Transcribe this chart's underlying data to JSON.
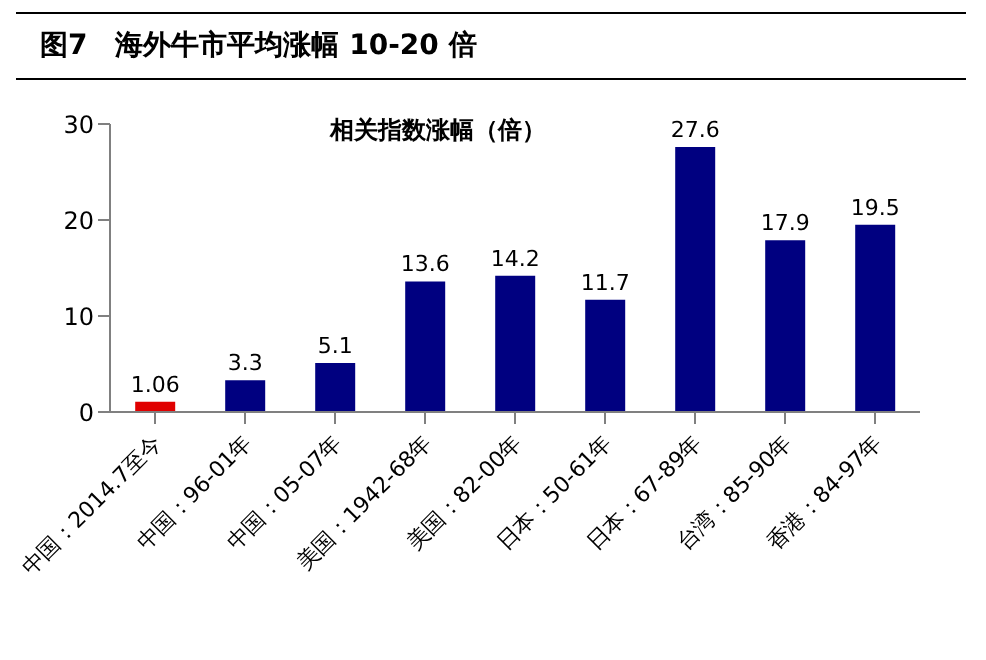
{
  "chart_data": {
    "type": "bar",
    "title": "图7　海外牛市平均涨幅 10-20 倍",
    "subtitle": "相关指数涨幅（倍）",
    "categories": [
      "中国：2014.7至今",
      "中国：96-01年",
      "中国：05-07年",
      "美国：1942-68年",
      "美国：82-00年",
      "日本：50-61年",
      "日本：67-89年",
      "台湾：85-90年",
      "香港：84-97年"
    ],
    "values": [
      1.06,
      3.3,
      5.1,
      13.6,
      14.2,
      11.7,
      27.6,
      17.9,
      19.5
    ],
    "colors": [
      "#e00000",
      "#000080",
      "#000080",
      "#000080",
      "#000080",
      "#000080",
      "#000080",
      "#000080",
      "#000080"
    ],
    "ylim": [
      0,
      30
    ],
    "yticks": [
      0,
      10,
      20,
      30
    ],
    "grid": false,
    "legend": false,
    "data_labels": true
  }
}
